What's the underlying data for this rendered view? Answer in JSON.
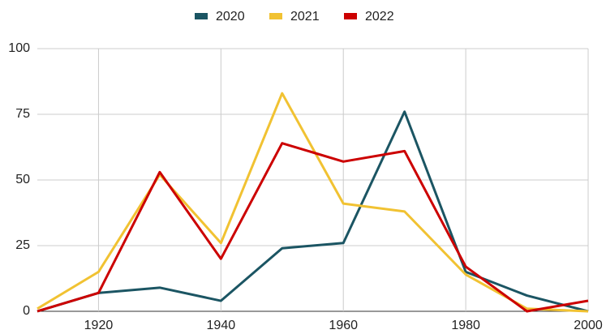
{
  "chart_data": {
    "type": "line",
    "x": [
      1910,
      1920,
      1930,
      1940,
      1950,
      1960,
      1970,
      1980,
      1990,
      2000
    ],
    "series": [
      {
        "name": "2020",
        "color": "#1b5563",
        "values": [
          0,
          7,
          9,
          4,
          24,
          26,
          76,
          15,
          6,
          0
        ]
      },
      {
        "name": "2021",
        "color": "#f1c232",
        "values": [
          1,
          15,
          52,
          26,
          83,
          41,
          38,
          14,
          1,
          0
        ]
      },
      {
        "name": "2022",
        "color": "#cc0000",
        "values": [
          0,
          7,
          53,
          20,
          64,
          57,
          61,
          17,
          0,
          4
        ]
      }
    ],
    "xlim": [
      1910,
      2000
    ],
    "xticks": [
      1920,
      1940,
      1960,
      1980,
      2000
    ],
    "ylim": [
      0,
      100
    ],
    "yticks": [
      0,
      25,
      50,
      75,
      100
    ],
    "grid": true,
    "legend": "top"
  }
}
